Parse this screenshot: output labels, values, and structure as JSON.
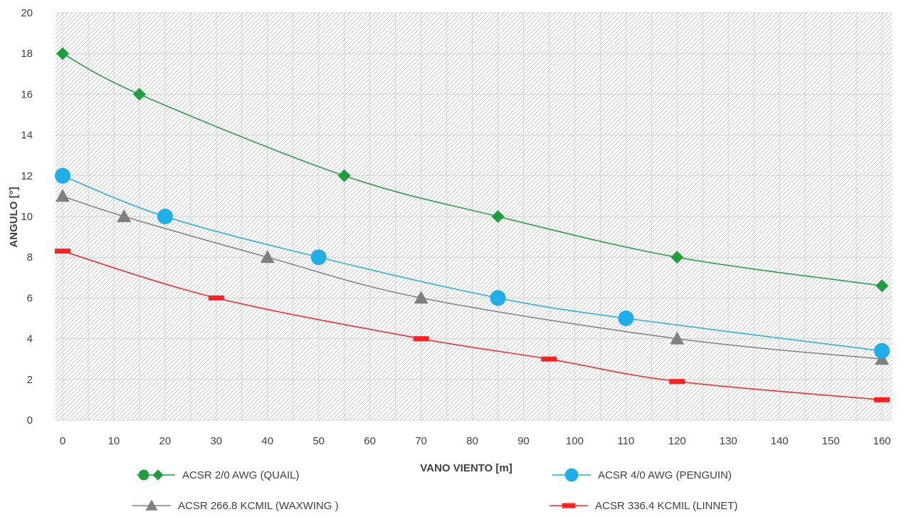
{
  "chart_data": {
    "type": "line",
    "title": "",
    "xlabel": "VANO VIENTO [m]",
    "ylabel": "ANGULO [°]",
    "xlim": [
      0,
      160
    ],
    "ylim": [
      0,
      20
    ],
    "xticks": [
      0,
      10,
      20,
      30,
      40,
      50,
      60,
      70,
      80,
      90,
      100,
      110,
      120,
      130,
      140,
      150,
      160
    ],
    "yticks": [
      0,
      2,
      4,
      6,
      8,
      10,
      12,
      14,
      16,
      18,
      20
    ],
    "grid": "hatched plot area with vertical and horizontal gridlines",
    "legend_position": "bottom",
    "series": [
      {
        "name": "ACSR 2/0 AWG (QUAIL)",
        "color": "#1e9e3e",
        "marker": "diamond",
        "x": [
          0,
          15,
          55,
          85,
          120,
          160
        ],
        "y": [
          18,
          16,
          12,
          10,
          8,
          6.6
        ]
      },
      {
        "name": "ACSR 4/0 AWG (PENGUIN)",
        "color": "#1eaee8",
        "marker": "circle",
        "x": [
          0,
          20,
          50,
          85,
          110,
          160
        ],
        "y": [
          12,
          10,
          8,
          6,
          5,
          3.4
        ]
      },
      {
        "name": "ACSR 266.8 KCMIL (WAXWING )",
        "color": "#808080",
        "marker": "triangle",
        "x": [
          0,
          12,
          40,
          70,
          120,
          160
        ],
        "y": [
          11,
          10,
          8,
          6,
          4,
          3
        ]
      },
      {
        "name": "ACSR 336.4 KCMIL (LINNET)",
        "color": "#ff2020",
        "marker": "dash",
        "x": [
          0,
          30,
          70,
          95,
          120,
          160
        ],
        "y": [
          8.3,
          6,
          4,
          3,
          1.9,
          1
        ]
      }
    ]
  }
}
